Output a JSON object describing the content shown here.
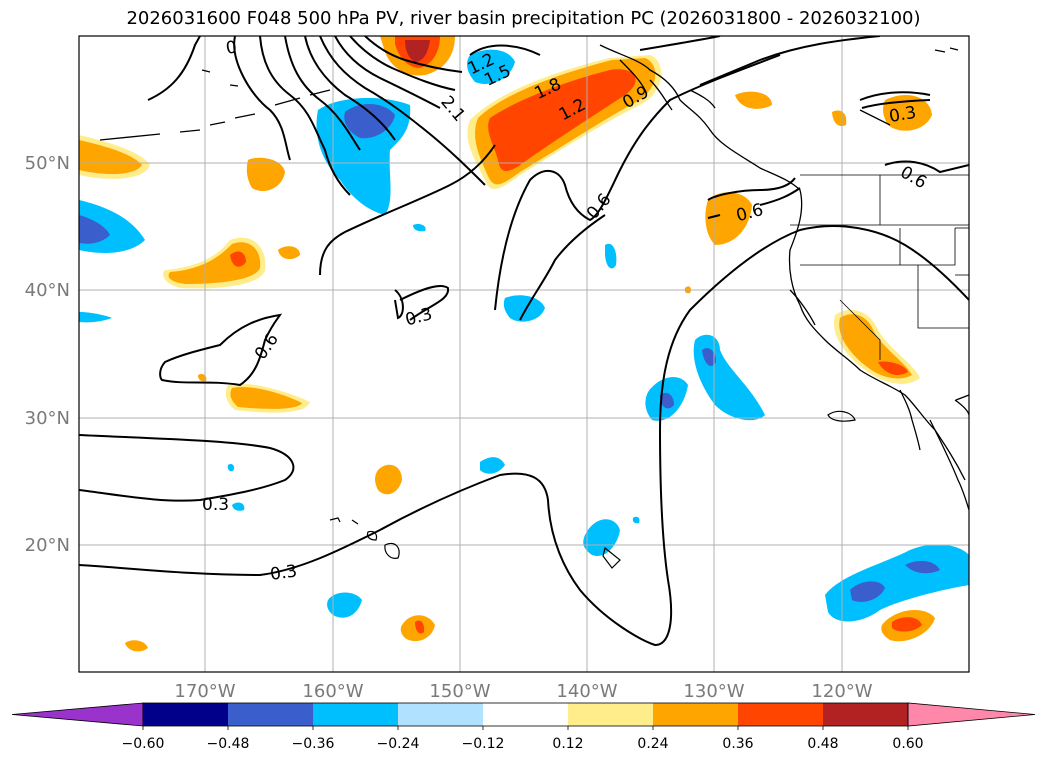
{
  "title": "2026031600 F048 500 hPa PV, river basin precipitation PC (2026031800 - 2026032100)",
  "map": {
    "lon_labels": [
      "170°W",
      "160°W",
      "150°W",
      "140°W",
      "130°W",
      "120°W"
    ],
    "lat_labels": [
      "50°N",
      "40°N",
      "30°N",
      "20°N"
    ],
    "grid": true
  },
  "contour_labels": [
    "0",
    "1.2",
    "1.5",
    "1.8",
    "1.2",
    "0.9",
    "2.1",
    "0.3",
    "0.6",
    "0.6",
    "0.6",
    "0.3",
    "0.6",
    "0.3",
    "0.3"
  ],
  "colorbar": {
    "ticks": [
      "−0.60",
      "−0.48",
      "−0.36",
      "−0.24",
      "−0.12",
      "0.12",
      "0.24",
      "0.36",
      "0.48",
      "0.60"
    ],
    "colors": [
      "#9a33cc",
      "#00008b",
      "#3a5fcd",
      "#00bfff",
      "#b0e2ff",
      "#ffffff",
      "#ffec8b",
      "#ffa500",
      "#ff4500",
      "#b22222",
      "#ff88aa"
    ]
  }
}
